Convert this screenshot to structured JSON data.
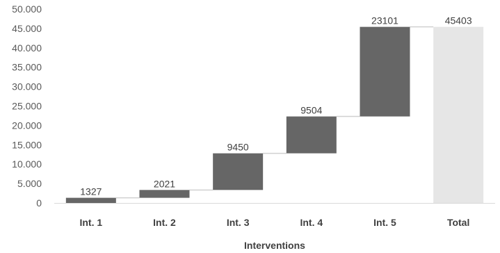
{
  "chart_data": {
    "type": "bar",
    "subtype": "waterfall",
    "categories": [
      "Int. 1",
      "Int. 2",
      "Int. 3",
      "Int. 4",
      "Int. 5",
      "Total"
    ],
    "values": [
      1327,
      2021,
      9450,
      9504,
      23101,
      45403
    ],
    "total_index": 5,
    "xlabel": "Interventions",
    "ylabel": "",
    "ylim": [
      0,
      50000
    ],
    "yticks": [
      "0",
      "5.000",
      "10.000",
      "15.000",
      "20.000",
      "25.000",
      "30.000",
      "35.000",
      "40.000",
      "45.000",
      "50.000"
    ],
    "grid": false,
    "legend": "none",
    "colors": {
      "step": "#666666",
      "total": "#e6e6e6",
      "connector": "#d0d0d0",
      "axis": "#d9d9d9"
    }
  }
}
